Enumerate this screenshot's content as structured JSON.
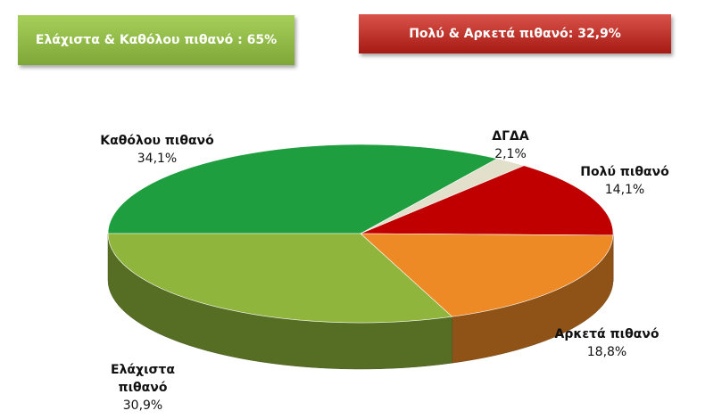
{
  "chart_data": {
    "type": "pie",
    "annotations": [
      "Ελάχιστα & Καθόλου πιθανό : 65%",
      "Πολύ & Αρκετά πιθανό: 32,9%"
    ],
    "categories": [
      "Καθόλου πιθανό",
      "ΔΓΔΑ",
      "Πολύ πιθανό",
      "Αρκετά πιθανό",
      "Ελάχιστα πιθανό"
    ],
    "values": [
      34.1,
      2.1,
      14.1,
      18.8,
      30.9
    ],
    "value_labels": [
      "34,1%",
      "2,1%",
      "14,1%",
      "18,8%",
      "30,9%"
    ],
    "colors": [
      "#1e9e3e",
      "#e2dfcb",
      "#c00000",
      "#ee8a26",
      "#8fb53c"
    ]
  }
}
